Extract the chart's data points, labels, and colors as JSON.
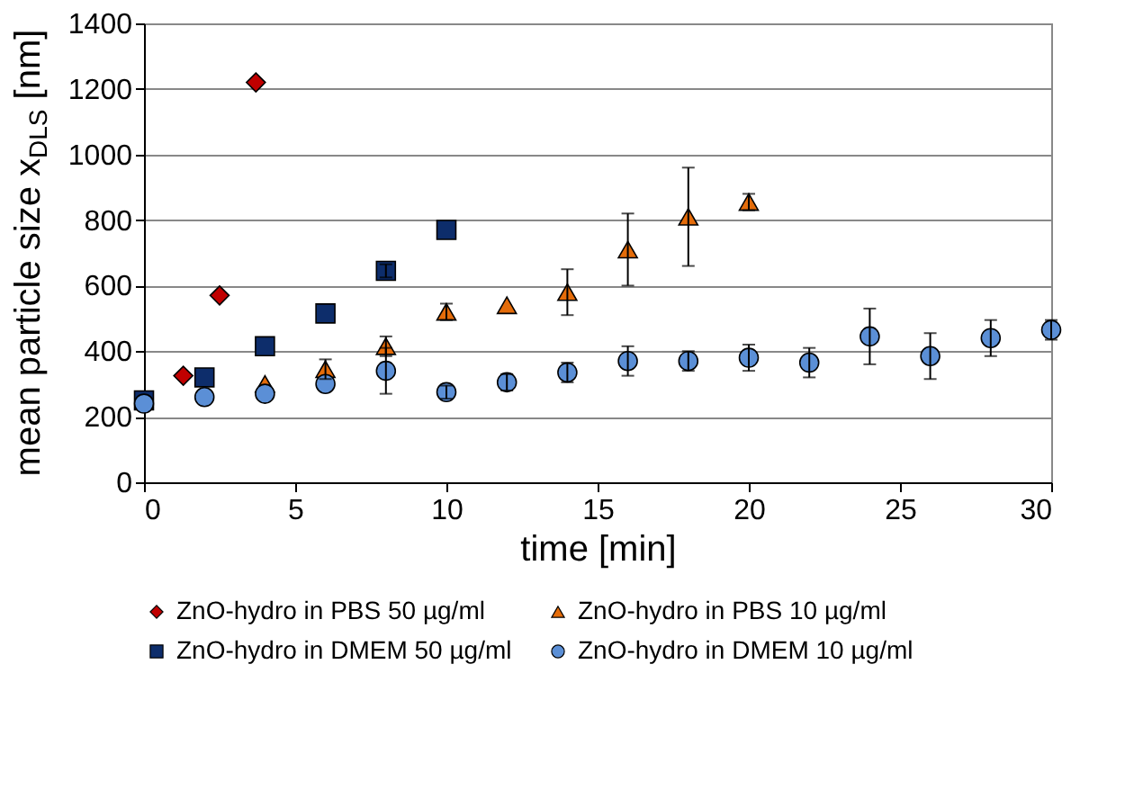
{
  "chart_data": {
    "type": "scatter",
    "xlabel": "time [min]",
    "ylabel": "mean particle size x$_{DLS}$ [nm]",
    "xlim": [
      0,
      30
    ],
    "xticks": [
      0,
      5,
      10,
      15,
      20,
      25,
      30
    ],
    "ylim": [
      0,
      1400
    ],
    "yticks": [
      0,
      200,
      400,
      600,
      800,
      1000,
      1200,
      1400
    ],
    "grid": "y",
    "legend": "bottom",
    "series": [
      {
        "name": "ZnO-hydro in PBS 50 µg/ml",
        "color": "#c00000",
        "marker": "diamond",
        "x": [
          1.3,
          2.5,
          3.7
        ],
        "values": [
          325,
          570,
          1220
        ]
      },
      {
        "name": "ZnO-hydro in PBS 10 µg/ml",
        "color": "#e46c0a",
        "marker": "triangle",
        "x": [
          4,
          6,
          8,
          10,
          12,
          14,
          16,
          18,
          20
        ],
        "values": [
          300,
          345,
          415,
          520,
          540,
          580,
          710,
          810,
          855
        ],
        "errors": [
          null,
          30,
          30,
          25,
          null,
          70,
          110,
          150,
          25
        ]
      },
      {
        "name": "ZnO-hydro in DMEM 50 µg/ml",
        "color": "#0d2d6b",
        "marker": "square",
        "x": [
          0,
          2,
          4,
          6,
          8,
          10
        ],
        "values": [
          250,
          320,
          415,
          515,
          645,
          770
        ],
        "errors": [
          null,
          null,
          null,
          null,
          20,
          null
        ]
      },
      {
        "name": "ZnO-hydro in DMEM 10 µg/ml",
        "color": "#5b8fd6",
        "marker": "circle",
        "x": [
          0,
          2,
          4,
          6,
          8,
          10,
          12,
          14,
          16,
          18,
          20,
          22,
          24,
          26,
          28,
          30
        ],
        "values": [
          240,
          260,
          270,
          300,
          340,
          275,
          305,
          335,
          370,
          370,
          380,
          365,
          445,
          385,
          440,
          465
        ],
        "errors": [
          null,
          null,
          null,
          null,
          70,
          20,
          25,
          30,
          45,
          30,
          40,
          45,
          85,
          70,
          55,
          30
        ]
      }
    ]
  }
}
